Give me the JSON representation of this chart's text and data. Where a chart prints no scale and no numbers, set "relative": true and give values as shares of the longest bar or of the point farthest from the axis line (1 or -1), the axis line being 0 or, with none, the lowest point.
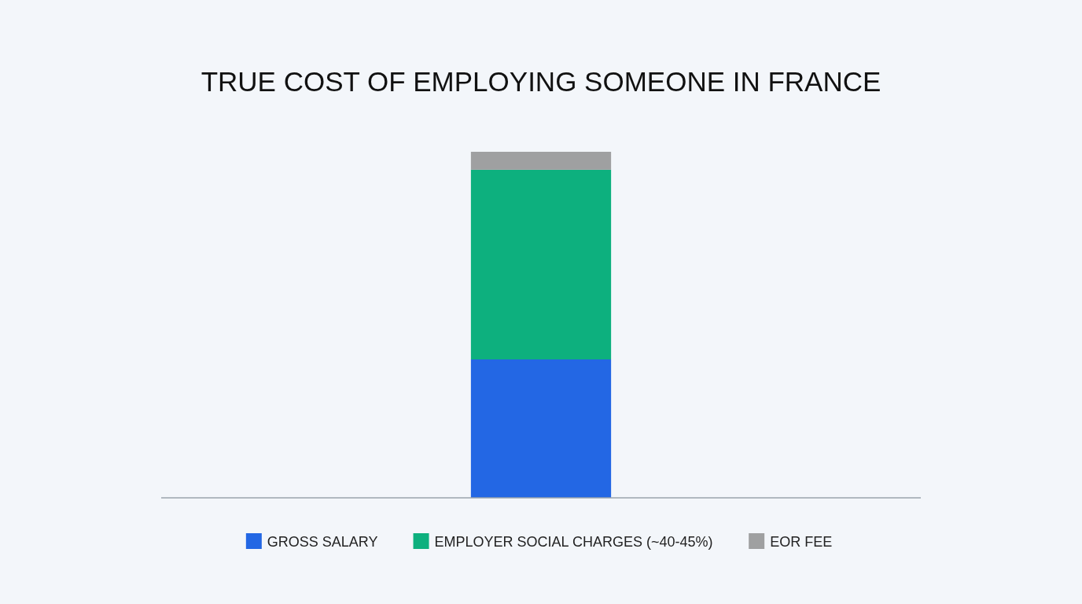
{
  "chart_data": {
    "type": "bar",
    "title": "TRUE COST OF EMPLOYING SOMEONE IN FRANCE",
    "categories": [
      null
    ],
    "stacked": true,
    "relative": true,
    "legend": "bottom",
    "series": [
      {
        "name": "GROSS SALARY",
        "color": "#2367e4",
        "values": [
          0.4
        ]
      },
      {
        "name": "EMPLOYER SOCIAL CHARGES (~40-45%)",
        "color": "#0db07e",
        "values": [
          0.548
        ]
      },
      {
        "name": "EOR FEE",
        "color": "#9fa0a1",
        "values": [
          0.052
        ]
      }
    ]
  }
}
